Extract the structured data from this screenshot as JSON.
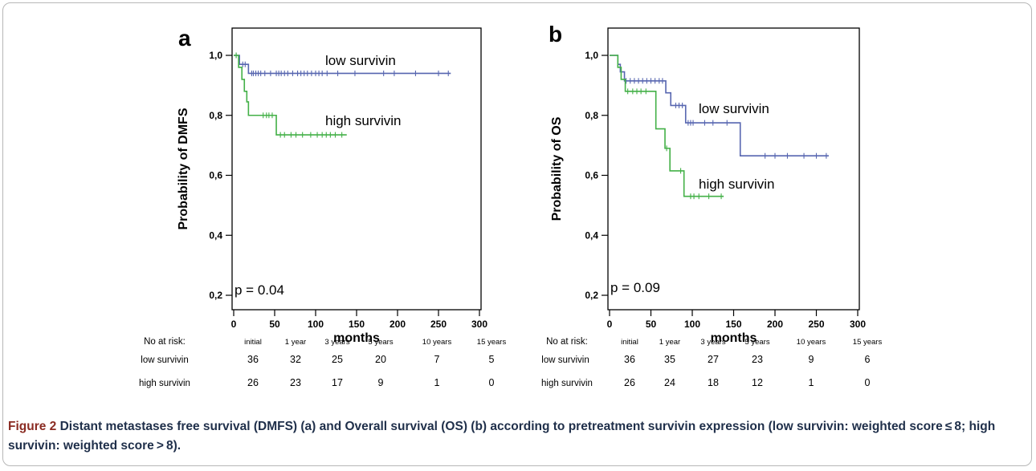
{
  "figure": {
    "caption_label": "Figure 2",
    "caption_text": " Distant metastases free survival (DMFS) (a) and Overall survival (OS) (b) according to pretreatment survivin expression (low survivin: weighted score ≤ 8; high survivin: weighted score > 8)."
  },
  "risk_table_header": [
    "initial",
    "1 year",
    "3  years",
    "5 years",
    "10  years",
    "15  years"
  ],
  "chart_data": [
    {
      "type": "line",
      "panel_label": "a",
      "xlabel": "months",
      "ylabel": "Probability of DMFS",
      "xlim": [
        0,
        300
      ],
      "ylim": [
        0.2,
        1.0
      ],
      "x_ticks": [
        "0",
        "50",
        "100",
        "150",
        "200",
        "250",
        "300"
      ],
      "y_ticks": [
        "0,2",
        "0,4",
        "0,6",
        "0,8",
        "1,0"
      ],
      "y_tick_values": [
        0.2,
        0.4,
        0.6,
        0.8,
        1.0
      ],
      "annotation": "p = 0.04",
      "series": [
        {
          "name": "low survivin",
          "color": "#5766b0",
          "steps": [
            [
              0,
              1.0
            ],
            [
              7,
              0.97
            ],
            [
              18,
              0.94
            ],
            [
              265,
              0.94
            ]
          ],
          "censored": [
            3,
            11,
            14,
            22,
            24,
            27,
            30,
            33,
            38,
            45,
            52,
            55,
            58,
            62,
            66,
            72,
            78,
            82,
            86,
            90,
            95,
            100,
            104,
            108,
            114,
            127,
            148,
            183,
            196,
            222,
            250,
            262
          ]
        },
        {
          "name": "high survivin",
          "color": "#43b047",
          "steps": [
            [
              0,
              1.0
            ],
            [
              6,
              0.96
            ],
            [
              10,
              0.92
            ],
            [
              13,
              0.88
            ],
            [
              16,
              0.845
            ],
            [
              18,
              0.8
            ],
            [
              52,
              0.735
            ],
            [
              138,
              0.735
            ]
          ],
          "censored": [
            3,
            36,
            40,
            43,
            47,
            57,
            62,
            70,
            76,
            84,
            94,
            102,
            108,
            113,
            118,
            124,
            132
          ]
        }
      ],
      "at_risk": {
        "title": "No at risk:",
        "rows": [
          {
            "label": "low survivin",
            "values": [
              "36",
              "32",
              "25",
              "20",
              "7",
              "5"
            ]
          },
          {
            "label": "high survivin",
            "values": [
              "26",
              "23",
              "17",
              "9",
              "1",
              "0"
            ]
          }
        ]
      }
    },
    {
      "type": "line",
      "panel_label": "b",
      "xlabel": "months",
      "ylabel": "Probability of OS",
      "xlim": [
        0,
        300
      ],
      "ylim": [
        0.2,
        1.0
      ],
      "x_ticks": [
        "0",
        "50",
        "100",
        "150",
        "200",
        "250",
        "300"
      ],
      "y_ticks": [
        "0,2",
        "0,4",
        "0,6",
        "0,8",
        "1,0"
      ],
      "y_tick_values": [
        0.2,
        0.4,
        0.6,
        0.8,
        1.0
      ],
      "annotation": "p = 0.09",
      "series": [
        {
          "name": "low survivin",
          "color": "#5766b0",
          "steps": [
            [
              0,
              1.0
            ],
            [
              10,
              0.97
            ],
            [
              13,
              0.945
            ],
            [
              18,
              0.915
            ],
            [
              68,
              0.875
            ],
            [
              74,
              0.833
            ],
            [
              92,
              0.775
            ],
            [
              158,
              0.665
            ],
            [
              265,
              0.665
            ]
          ],
          "censored": [
            20,
            25,
            30,
            35,
            40,
            45,
            50,
            55,
            60,
            64,
            80,
            84,
            88,
            95,
            98,
            101,
            115,
            125,
            142,
            188,
            200,
            215,
            235,
            250,
            262
          ]
        },
        {
          "name": "high survivin",
          "color": "#43b047",
          "steps": [
            [
              0,
              1.0
            ],
            [
              10,
              0.96
            ],
            [
              14,
              0.92
            ],
            [
              19,
              0.88
            ],
            [
              56,
              0.755
            ],
            [
              67,
              0.69
            ],
            [
              73,
              0.615
            ],
            [
              90,
              0.53
            ],
            [
              138,
              0.53
            ]
          ],
          "censored": [
            22,
            28,
            33,
            38,
            44,
            69,
            86,
            98,
            102,
            108,
            120,
            135
          ]
        }
      ],
      "at_risk": {
        "title": "No at risk:",
        "rows": [
          {
            "label": "low survivin",
            "values": [
              "36",
              "35",
              "27",
              "23",
              "9",
              "6"
            ]
          },
          {
            "label": "high survivin",
            "values": [
              "26",
              "24",
              "18",
              "12",
              "1",
              "0"
            ]
          }
        ]
      }
    }
  ]
}
